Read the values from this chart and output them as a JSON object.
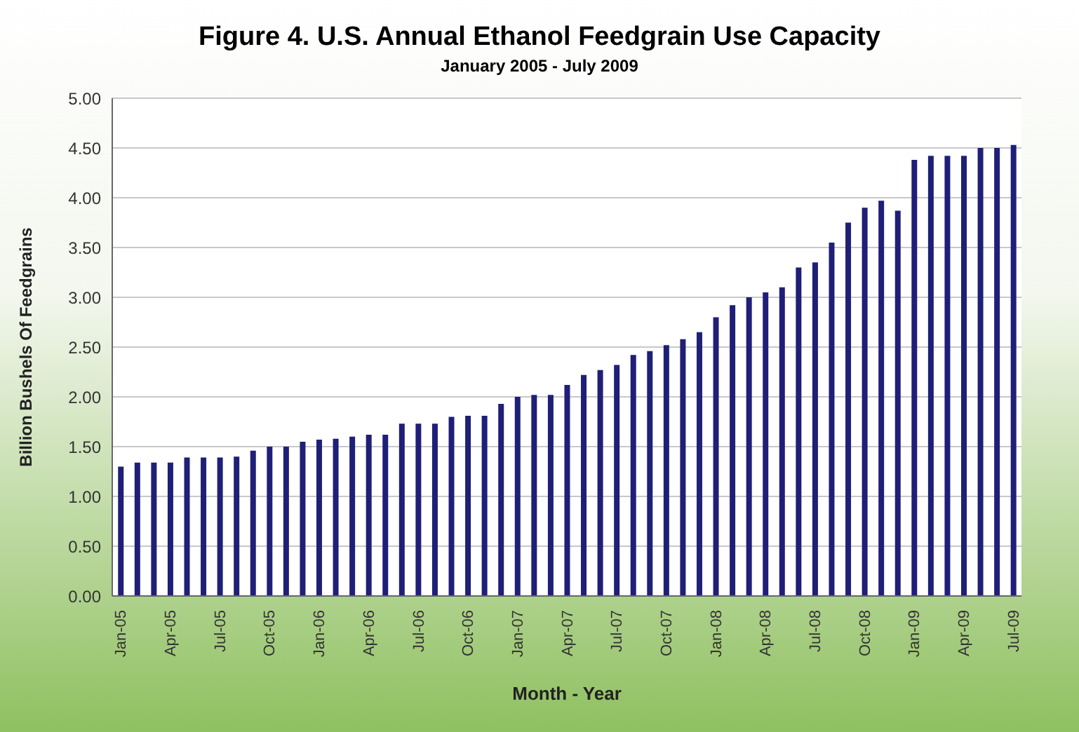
{
  "chart_data": {
    "type": "bar",
    "title": "Figure 4. U.S. Annual Ethanol Feedgrain Use Capacity",
    "subtitle": "January 2005 - July 2009",
    "xlabel": "Month - Year",
    "ylabel": "Billion Bushels Of Feedgrains",
    "categories": [
      "Jan-05",
      null,
      null,
      "Apr-05",
      null,
      null,
      "Jul-05",
      null,
      null,
      "Oct-05",
      null,
      null,
      "Jan-06",
      null,
      null,
      "Apr-06",
      null,
      null,
      "Jul-06",
      null,
      null,
      "Oct-06",
      null,
      null,
      "Jan-07",
      null,
      null,
      "Apr-07",
      null,
      null,
      "Jul-07",
      null,
      null,
      "Oct-07",
      null,
      null,
      "Jan-08",
      null,
      null,
      "Apr-08",
      null,
      null,
      "Jul-08",
      null,
      null,
      "Oct-08",
      null,
      null,
      "Jan-09",
      null,
      null,
      "Apr-09",
      null,
      null,
      "Jul-09"
    ],
    "values": [
      1.3,
      1.34,
      1.34,
      1.34,
      1.39,
      1.39,
      1.39,
      1.4,
      1.46,
      1.5,
      1.5,
      1.55,
      1.57,
      1.58,
      1.6,
      1.62,
      1.62,
      1.73,
      1.73,
      1.73,
      1.8,
      1.81,
      1.81,
      1.93,
      2.0,
      2.02,
      2.02,
      2.12,
      2.22,
      2.27,
      2.32,
      2.42,
      2.46,
      2.52,
      2.58,
      2.65,
      2.8,
      2.92,
      3.0,
      3.05,
      3.1,
      3.3,
      3.35,
      3.55,
      3.75,
      3.9,
      3.97,
      3.87,
      4.38,
      4.42,
      4.42,
      4.42,
      4.5,
      4.5,
      4.53
    ],
    "color": "#1f1f78",
    "ylim": [
      0,
      5
    ],
    "yticks": [
      {
        "value": 0,
        "label": "0.00"
      },
      {
        "value": 0.5,
        "label": "0.50"
      },
      {
        "value": 1,
        "label": "1.00"
      },
      {
        "value": 1.5,
        "label": "1.50"
      },
      {
        "value": 2,
        "label": "2.00"
      },
      {
        "value": 2.5,
        "label": "2.50"
      },
      {
        "value": 3,
        "label": "3.00"
      },
      {
        "value": 3.5,
        "label": "3.50"
      },
      {
        "value": 4,
        "label": "4.00"
      },
      {
        "value": 4.5,
        "label": "4.50"
      },
      {
        "value": 5,
        "label": "5.00"
      }
    ],
    "grid": "y"
  }
}
